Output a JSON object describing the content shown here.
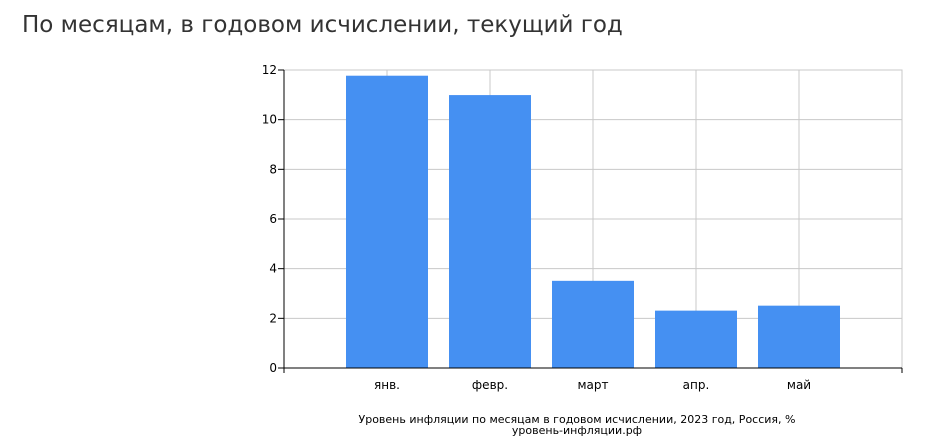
{
  "page": {
    "title": "По месяцам, в годовом исчислении, текущий год"
  },
  "chart_data": {
    "type": "bar",
    "categories": [
      "янв.",
      "февр.",
      "март",
      "апр.",
      "май"
    ],
    "values": [
      11.77,
      10.99,
      3.51,
      2.31,
      2.51
    ],
    "ylim": [
      0,
      12
    ],
    "yticks": [
      0,
      2,
      4,
      6,
      8,
      10,
      12
    ],
    "grid": true,
    "legend": "none",
    "caption": "Уровень инфляции по месяцам в годовом исчислении, 2023 год, Россия, %",
    "source": "уровень-инфляции.рф",
    "colors": {
      "bar": "#4590F2",
      "grid": "#c8c8c8",
      "axis": "#000000"
    }
  }
}
